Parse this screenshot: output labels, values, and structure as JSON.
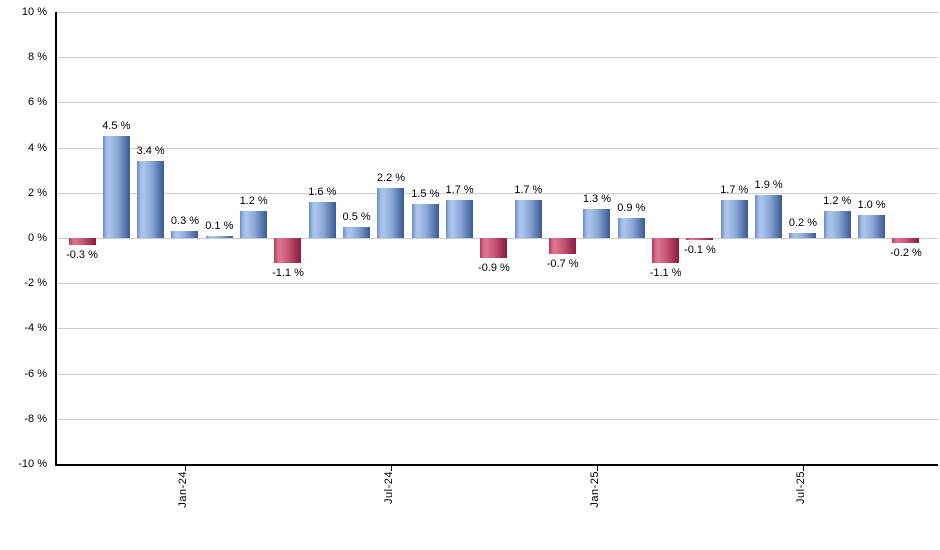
{
  "chart_data": {
    "type": "bar",
    "title": "",
    "unit": "%",
    "values": [
      -0.3,
      4.5,
      3.4,
      0.3,
      0.1,
      1.2,
      -1.1,
      1.6,
      0.5,
      2.2,
      1.5,
      1.7,
      -0.9,
      1.7,
      -0.7,
      1.3,
      0.9,
      -1.1,
      -0.1,
      1.7,
      1.9,
      0.2,
      1.2,
      1.0,
      -0.2
    ],
    "bar_labels": [
      "-0.3 %",
      "4.5 %",
      "3.4 %",
      "0.3 %",
      "0.1 %",
      "1.2 %",
      "-1.1 %",
      "1.6 %",
      "0.5 %",
      "2.2 %",
      "1.5 %",
      "1.7 %",
      "-0.9 %",
      "1.7 %",
      "-0.7 %",
      "1.3 %",
      "0.9 %",
      "-1.1 %",
      "-0.1 %",
      "1.7 %",
      "1.9 %",
      "0.2 %",
      "1.2 %",
      "1.0 %",
      "-0.2 %"
    ],
    "x_ticks": [
      {
        "index": 3,
        "label": "Jan-24"
      },
      {
        "index": 9,
        "label": "Jul-24"
      },
      {
        "index": 15,
        "label": "Jan-25"
      },
      {
        "index": 21,
        "label": "Jul-25"
      }
    ],
    "y_ticks": [
      {
        "value": 10,
        "label": "10 %"
      },
      {
        "value": 8,
        "label": "8 %"
      },
      {
        "value": 6,
        "label": "6 %"
      },
      {
        "value": 4,
        "label": "4 %"
      },
      {
        "value": 2,
        "label": "2 %"
      },
      {
        "value": 0,
        "label": "0 %"
      },
      {
        "value": -2,
        "label": "-2 %"
      },
      {
        "value": -4,
        "label": "-4 %"
      },
      {
        "value": -6,
        "label": "-6 %"
      },
      {
        "value": -8,
        "label": "-8 %"
      },
      {
        "value": -10,
        "label": "-10 %"
      }
    ],
    "ylim": [
      -10,
      10
    ],
    "grid": "horizontal",
    "legend": "none",
    "colors": {
      "positive_bar_light": "#abc5ee",
      "positive_bar_dark": "#3a5a92",
      "negative_bar_light": "#de7390",
      "negative_bar_dark": "#8a1c3e",
      "gridline": "#cccccc",
      "axis": "#000000",
      "text": "#000000"
    }
  }
}
